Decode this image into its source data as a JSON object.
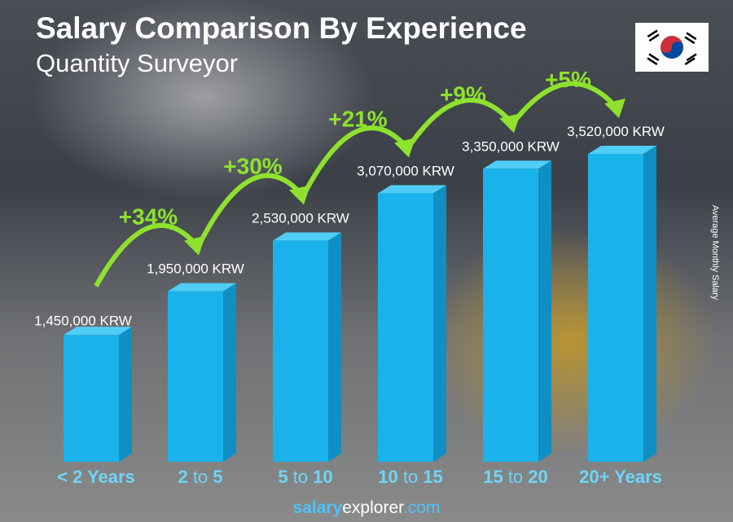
{
  "header": {
    "title": "Salary Comparison By Experience",
    "subtitle": "Quantity Surveyor"
  },
  "flag": {
    "country": "South Korea",
    "icon": "south-korea-flag-icon"
  },
  "footer": {
    "brand_bold": "salary",
    "brand_regular": "explorer",
    "brand_tld": ".com"
  },
  "chart_data": {
    "type": "bar",
    "title": "Salary Comparison By Experience",
    "subtitle": "Quantity Surveyor",
    "ylabel": "Average Monthly Salary",
    "categories": [
      {
        "bold1": "< 2 Years",
        "thin": "",
        "bold2": ""
      },
      {
        "bold1": "2",
        "thin": " to ",
        "bold2": "5"
      },
      {
        "bold1": "5",
        "thin": " to ",
        "bold2": "10"
      },
      {
        "bold1": "10",
        "thin": " to ",
        "bold2": "15"
      },
      {
        "bold1": "15",
        "thin": " to ",
        "bold2": "20"
      },
      {
        "bold1": "20+ Years",
        "thin": "",
        "bold2": ""
      }
    ],
    "values": [
      1450000,
      1950000,
      2530000,
      3070000,
      3350000,
      3520000
    ],
    "value_labels": [
      "1,450,000 KRW",
      "1,950,000 KRW",
      "2,530,000 KRW",
      "3,070,000 KRW",
      "3,350,000 KRW",
      "3,520,000 KRW"
    ],
    "increases": [
      "+34%",
      "+30%",
      "+21%",
      "+9%",
      "+5%"
    ],
    "colors": {
      "bar_front": "#1ab2ea",
      "bar_side": "#0f8fc4",
      "bar_top": "#4fcdf5",
      "increase": "#8ee22d",
      "label": "#ffffff",
      "category": "#6fd5f7"
    }
  }
}
